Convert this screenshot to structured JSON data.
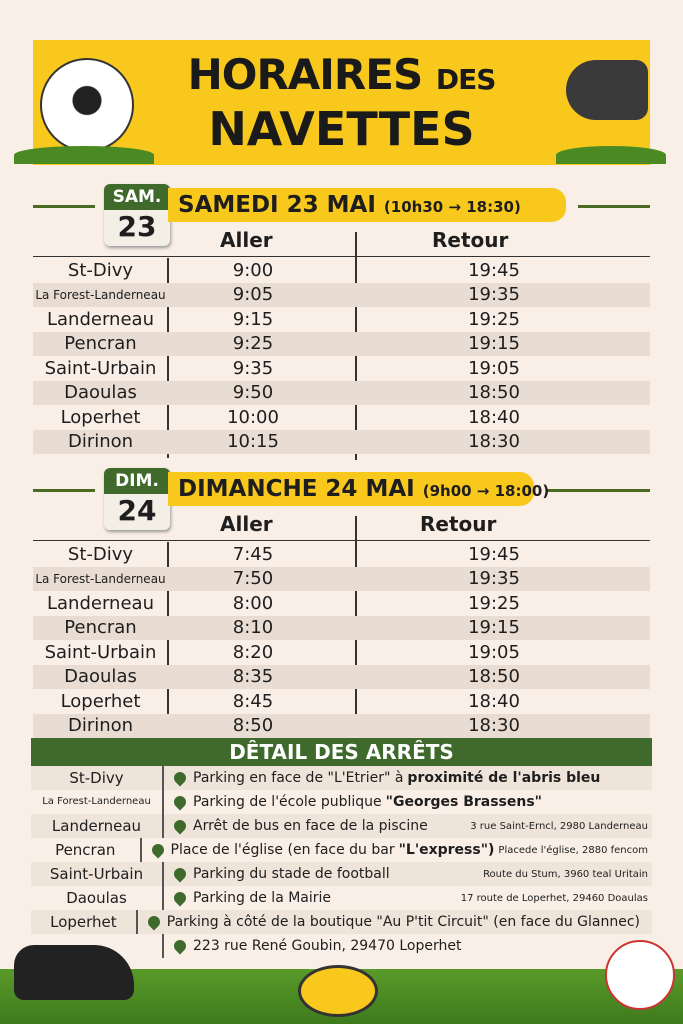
{
  "header": {
    "title_line1": "HORAIRES",
    "title_des": "DES",
    "title_line2": "NAVETTES"
  },
  "columns": {
    "aller": "Aller",
    "retour": "Retour"
  },
  "saturday": {
    "cal_month": "SAM.",
    "cal_day": "23",
    "title": "SAMEDI 23 MAI",
    "hours": "(10h30 → 18:30)",
    "rows": [
      {
        "stop": "St-Divy",
        "aller": "9:00",
        "retour": "19:45"
      },
      {
        "stop": "La Forest-Landerneau",
        "aller": "9:05",
        "retour": "19:35"
      },
      {
        "stop": "Landerneau",
        "aller": "9:15",
        "retour": "19:25"
      },
      {
        "stop": "Pencran",
        "aller": "9:25",
        "retour": "19:15"
      },
      {
        "stop": "Saint-Urbain",
        "aller": "9:35",
        "retour": "19:05"
      },
      {
        "stop": "Daoulas",
        "aller": "9:50",
        "retour": "18:50"
      },
      {
        "stop": "Loperhet",
        "aller": "10:00",
        "retour": "18:40"
      },
      {
        "stop": "Dirinon",
        "aller": "10:15",
        "retour": "18:30"
      }
    ]
  },
  "sunday": {
    "cal_month": "DIM.",
    "cal_day": "24",
    "title": "DIMANCHE 24 MAI",
    "hours": "(9h00 → 18:00)",
    "rows": [
      {
        "stop": "St-Divy",
        "aller": "7:45",
        "retour": "19:45"
      },
      {
        "stop": "La Forest-Landerneau",
        "aller": "7:50",
        "retour": "19:35"
      },
      {
        "stop": "Landerneau",
        "aller": "8:00",
        "retour": "19:25"
      },
      {
        "stop": "Pencran",
        "aller": "8:10",
        "retour": "19:15"
      },
      {
        "stop": "Saint-Urbain",
        "aller": "8:20",
        "retour": "19:05"
      },
      {
        "stop": "Daoulas",
        "aller": "8:35",
        "retour": "18:50"
      },
      {
        "stop": "Loperhet",
        "aller": "8:45",
        "retour": "18:40"
      },
      {
        "stop": "Dirinon",
        "aller": "8:50",
        "retour": "18:30"
      }
    ]
  },
  "detail": {
    "title": "DÊTAIL DES ARRÊTS",
    "rows": [
      {
        "stop": "St-Divy",
        "place": "Parking en face de \"L'Etrier\" à",
        "bold": "proximité de l'abris bleu",
        "addr": ""
      },
      {
        "stop": "La Forest-Landerneau",
        "place": "Parking de l'école publique",
        "bold": "\"Georges Brassens\"",
        "addr": ""
      },
      {
        "stop": "Landerneau",
        "place": "Arrêt de bus en face de la piscine",
        "bold": "",
        "addr": "3 rue Saint-Erncl, 2980 Landerneau"
      },
      {
        "stop": "Pencran",
        "place": "Place de l'église (en face du bar",
        "bold": "\"L'express\")",
        "addr": "Placede l'église, 2880 fencom"
      },
      {
        "stop": "Saint-Urbain",
        "place": "Parking du stade de football",
        "bold": "",
        "addr": "Route du Stum, 3960 teal Uritain"
      },
      {
        "stop": "Daoulas",
        "place": "Parking de la Mairie",
        "bold": "",
        "addr": "17 route de Loperhet, 29460 Doaulas"
      },
      {
        "stop": "Loperhet",
        "place": "Parking à côté de la boutique \"Au P'tit Circuit\" (en face du Glannec)",
        "bold": "",
        "addr": ""
      },
      {
        "stop": "",
        "place": "223 rue René Goubin, 29470 Loperhet",
        "bold": "",
        "addr": ""
      }
    ]
  },
  "colors": {
    "yellow": "#f8c81c",
    "green": "#3f6a2b",
    "background": "#f9efe6"
  }
}
